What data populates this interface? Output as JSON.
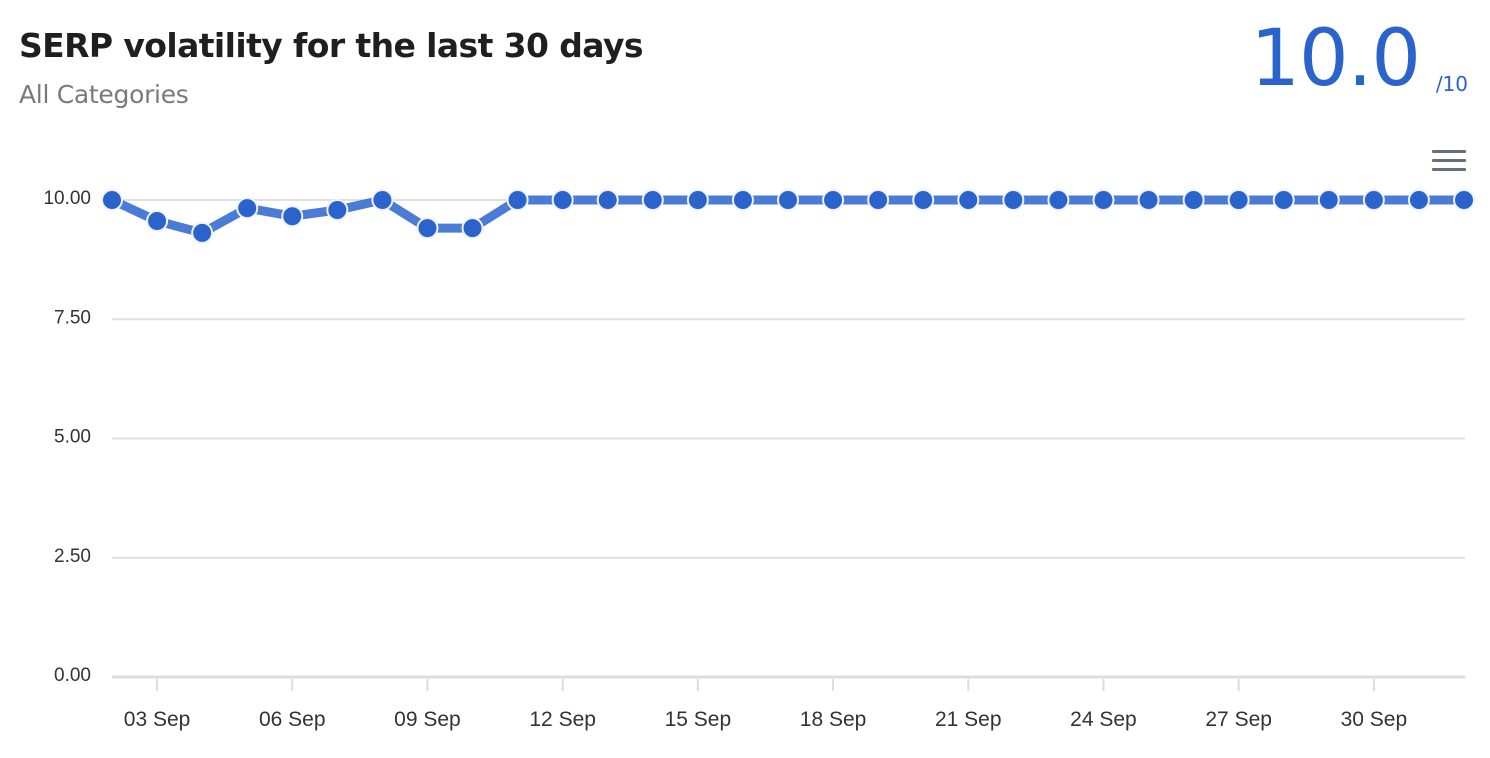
{
  "header": {
    "title": "SERP volatility for the last 30 days",
    "subtitle": "All Categories",
    "score": "10.0",
    "score_max": "/10"
  },
  "menu": {
    "icon": "hamburger-menu-icon",
    "label": "Chart context menu"
  },
  "colors": {
    "accent": "#2b63cc",
    "line": "#4a7bd6",
    "grid": "#e0e0e0",
    "text": "#333333"
  },
  "chart_data": {
    "type": "line",
    "title": "SERP volatility for the last 30 days",
    "subtitle": "All Categories",
    "xlabel": "",
    "ylabel": "",
    "ylim": [
      0,
      10
    ],
    "yticks": [
      "0.00",
      "2.50",
      "5.00",
      "7.50",
      "10.00"
    ],
    "xticks": [
      "03 Sep",
      "06 Sep",
      "09 Sep",
      "12 Sep",
      "15 Sep",
      "18 Sep",
      "21 Sep",
      "24 Sep",
      "27 Sep",
      "30 Sep"
    ],
    "grid": true,
    "legend": "none",
    "x": [
      "02 Sep",
      "03 Sep",
      "04 Sep",
      "05 Sep",
      "06 Sep",
      "07 Sep",
      "08 Sep",
      "09 Sep",
      "10 Sep",
      "11 Sep",
      "12 Sep",
      "13 Sep",
      "14 Sep",
      "15 Sep",
      "16 Sep",
      "17 Sep",
      "18 Sep",
      "19 Sep",
      "20 Sep",
      "21 Sep",
      "22 Sep",
      "23 Sep",
      "24 Sep",
      "25 Sep",
      "26 Sep",
      "27 Sep",
      "28 Sep",
      "29 Sep",
      "30 Sep",
      "01 Oct",
      "02 Oct"
    ],
    "series": [
      {
        "name": "SERP volatility",
        "values": [
          10.0,
          9.56,
          9.31,
          9.83,
          9.66,
          9.79,
          10.0,
          9.41,
          9.41,
          10.0,
          10.0,
          10.0,
          10.0,
          10.0,
          10.0,
          10.0,
          10.0,
          10.0,
          10.0,
          10.0,
          10.0,
          10.0,
          10.0,
          10.0,
          10.0,
          10.0,
          10.0,
          10.0,
          10.0,
          10.0,
          10.0
        ]
      }
    ]
  }
}
